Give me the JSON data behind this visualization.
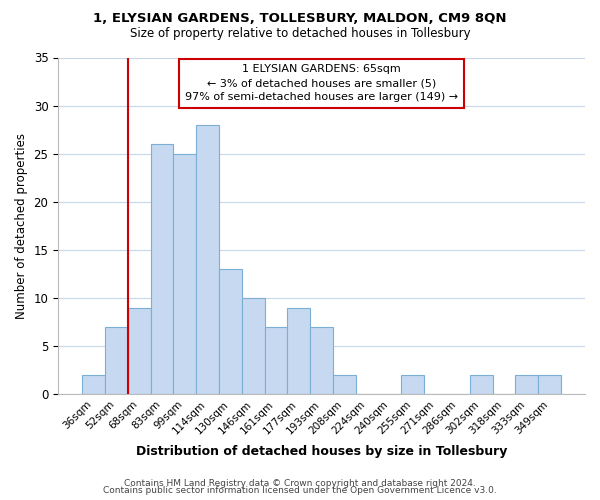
{
  "title": "1, ELYSIAN GARDENS, TOLLESBURY, MALDON, CM9 8QN",
  "subtitle": "Size of property relative to detached houses in Tollesbury",
  "xlabel": "Distribution of detached houses by size in Tollesbury",
  "ylabel": "Number of detached properties",
  "bar_labels": [
    "36sqm",
    "52sqm",
    "68sqm",
    "83sqm",
    "99sqm",
    "114sqm",
    "130sqm",
    "146sqm",
    "161sqm",
    "177sqm",
    "193sqm",
    "208sqm",
    "224sqm",
    "240sqm",
    "255sqm",
    "271sqm",
    "286sqm",
    "302sqm",
    "318sqm",
    "333sqm",
    "349sqm"
  ],
  "bar_heights": [
    2,
    7,
    9,
    26,
    25,
    28,
    13,
    10,
    7,
    9,
    7,
    2,
    0,
    0,
    2,
    0,
    0,
    2,
    0,
    2,
    2
  ],
  "bar_color": "#c6d9f1",
  "bar_edge_color": "#7bafd4",
  "ylim": [
    0,
    35
  ],
  "yticks": [
    0,
    5,
    10,
    15,
    20,
    25,
    30,
    35
  ],
  "vline_index": 2,
  "vline_color": "#cc0000",
  "annotation_line1": "1 ELYSIAN GARDENS: 65sqm",
  "annotation_line2": "← 3% of detached houses are smaller (5)",
  "annotation_line3": "97% of semi-detached houses are larger (149) →",
  "annotation_box_color": "#ffffff",
  "annotation_box_edge": "#cc0000",
  "footer1": "Contains HM Land Registry data © Crown copyright and database right 2024.",
  "footer2": "Contains public sector information licensed under the Open Government Licence v3.0.",
  "background_color": "#ffffff",
  "grid_color": "#c8d8e8"
}
